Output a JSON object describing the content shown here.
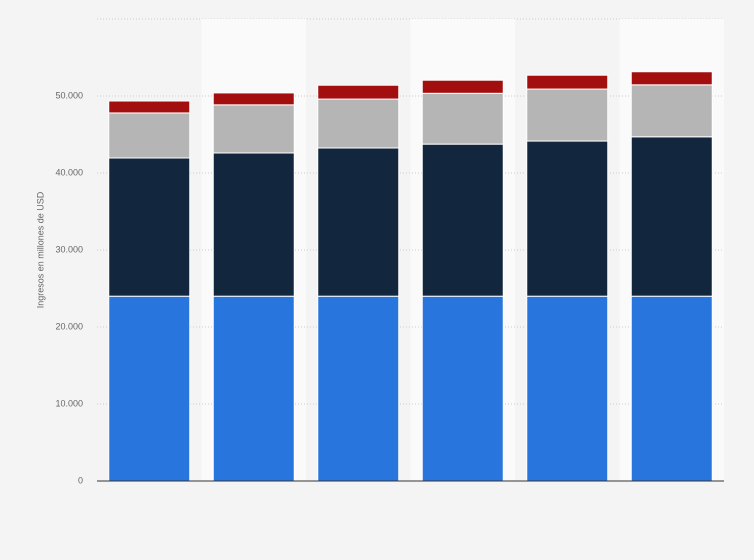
{
  "chart_data": {
    "type": "stacked-bar",
    "y_label": "Ingresos en millones de USD",
    "categories": [
      null,
      null,
      null,
      null,
      null,
      null
    ],
    "series": [
      {
        "color": "#2876dd",
        "values": [
          24000,
          24000,
          24000,
          24000,
          24000,
          24000
        ]
      },
      {
        "color": "#12263d",
        "values": [
          17950,
          18600,
          19250,
          19750,
          20150,
          20700
        ]
      },
      {
        "color": "#b5b5b5",
        "values": [
          5850,
          6250,
          6350,
          6600,
          6750,
          6750
        ]
      },
      {
        "color": "#a30f0f",
        "values": [
          1550,
          1550,
          1800,
          1700,
          1800,
          1700
        ]
      }
    ],
    "ylim": [
      0,
      60000
    ],
    "yticks": [
      0,
      {
        "value": 10000,
        "label": "10.000"
      },
      {
        "value": 20000,
        "label": "20.000"
      },
      {
        "value": 30000,
        "label": "30.000"
      },
      {
        "value": 40000,
        "label": "40.000"
      },
      {
        "value": 50000,
        "label": "50.000"
      }
    ],
    "grid": true
  }
}
